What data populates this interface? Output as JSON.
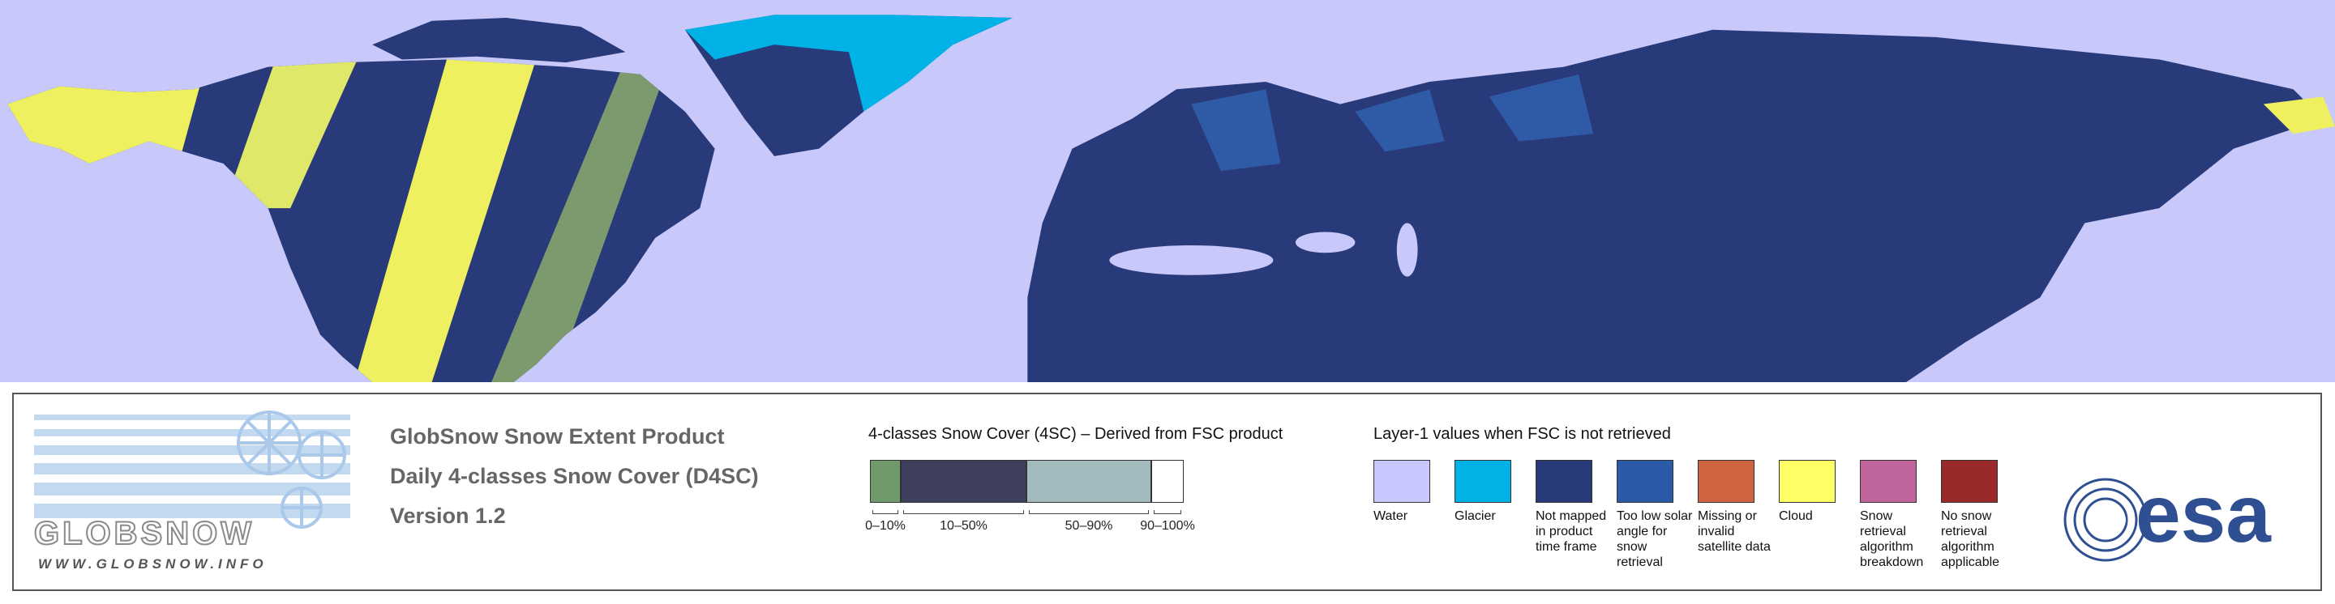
{
  "header": {
    "title": "GlobSnow Snow Extent Product",
    "subtitle": "Daily 4-classes Snow Cover (D4SC)",
    "version": "Version 1.2"
  },
  "logo": {
    "name": "GLOBSNOW",
    "url": "WWW.GLOBSNOW.INFO"
  },
  "snow_cover_legend": {
    "title": "4-classes Snow Cover (4SC) – Derived from FSC product",
    "classes": [
      {
        "label": "0–10%",
        "color": "#6e9a6c"
      },
      {
        "label": "10–50%",
        "color": "#3f3f5e"
      },
      {
        "label": "50–90%",
        "color": "#a2b9bd"
      },
      {
        "label": "90–100%",
        "color": "#ffffff"
      }
    ]
  },
  "layer1_legend": {
    "title": "Layer-1 values when FSC is not retrieved",
    "items": [
      {
        "label": "Water",
        "color": "#c8c8ff"
      },
      {
        "label": "Glacier",
        "color": "#00b2e6"
      },
      {
        "label": "Not mapped in product time frame",
        "color": "#283a7a"
      },
      {
        "label": "Too low solar angle for snow retrieval",
        "color": "#2b5aa8"
      },
      {
        "label": "Missing or invalid satellite data",
        "color": "#d06440"
      },
      {
        "label": "Cloud",
        "color": "#ffff66"
      },
      {
        "label": "Snow retrieval algorithm breakdown",
        "color": "#c0649c"
      },
      {
        "label": "No snow retrieval algorithm applicable",
        "color": "#9a2a2a"
      }
    ]
  },
  "agency": {
    "name": "esa"
  }
}
